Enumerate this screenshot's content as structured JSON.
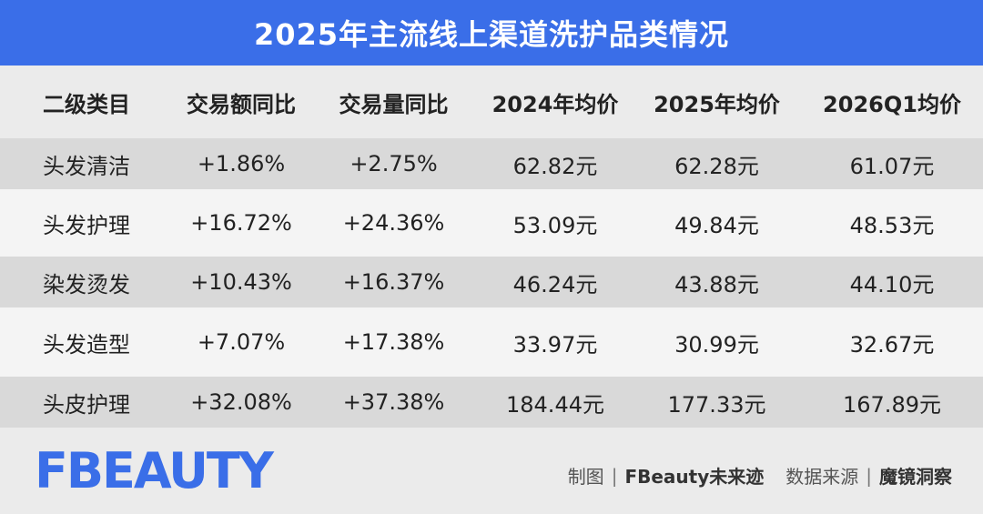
{
  "title": "2025年主流线上渠道洗护品类情况",
  "chart_data": {
    "type": "table",
    "title": "2025年主流线上渠道洗护品类情况",
    "columns": [
      "二级类目",
      "交易额同比",
      "交易量同比",
      "2024年均价",
      "2025年均价",
      "2026Q1均价"
    ],
    "rows": [
      [
        "头发清洁",
        "+1.86%",
        "+2.75%",
        "62.82元",
        "62.28元",
        "61.07元"
      ],
      [
        "头发护理",
        "+16.72%",
        "+24.36%",
        "53.09元",
        "49.84元",
        "48.53元"
      ],
      [
        "染发烫发",
        "+10.43%",
        "+16.37%",
        "46.24元",
        "43.88元",
        "44.10元"
      ],
      [
        "头发造型",
        "+7.07%",
        "+17.38%",
        "33.97元",
        "30.99元",
        "32.67元"
      ],
      [
        "头皮护理",
        "+32.08%",
        "+37.38%",
        "184.44元",
        "177.33元",
        "167.89元"
      ]
    ]
  },
  "footer": {
    "logo_text": "FBEAUTY",
    "made_by_label": "制图",
    "made_by": "FBeauty未来迹",
    "source_label": "数据来源",
    "source": "魔镜洞察"
  },
  "colors": {
    "accent": "#3a6ee8",
    "row_dark": "#d9d9d9",
    "row_light": "#f4f4f4",
    "background": "#ebebeb"
  }
}
